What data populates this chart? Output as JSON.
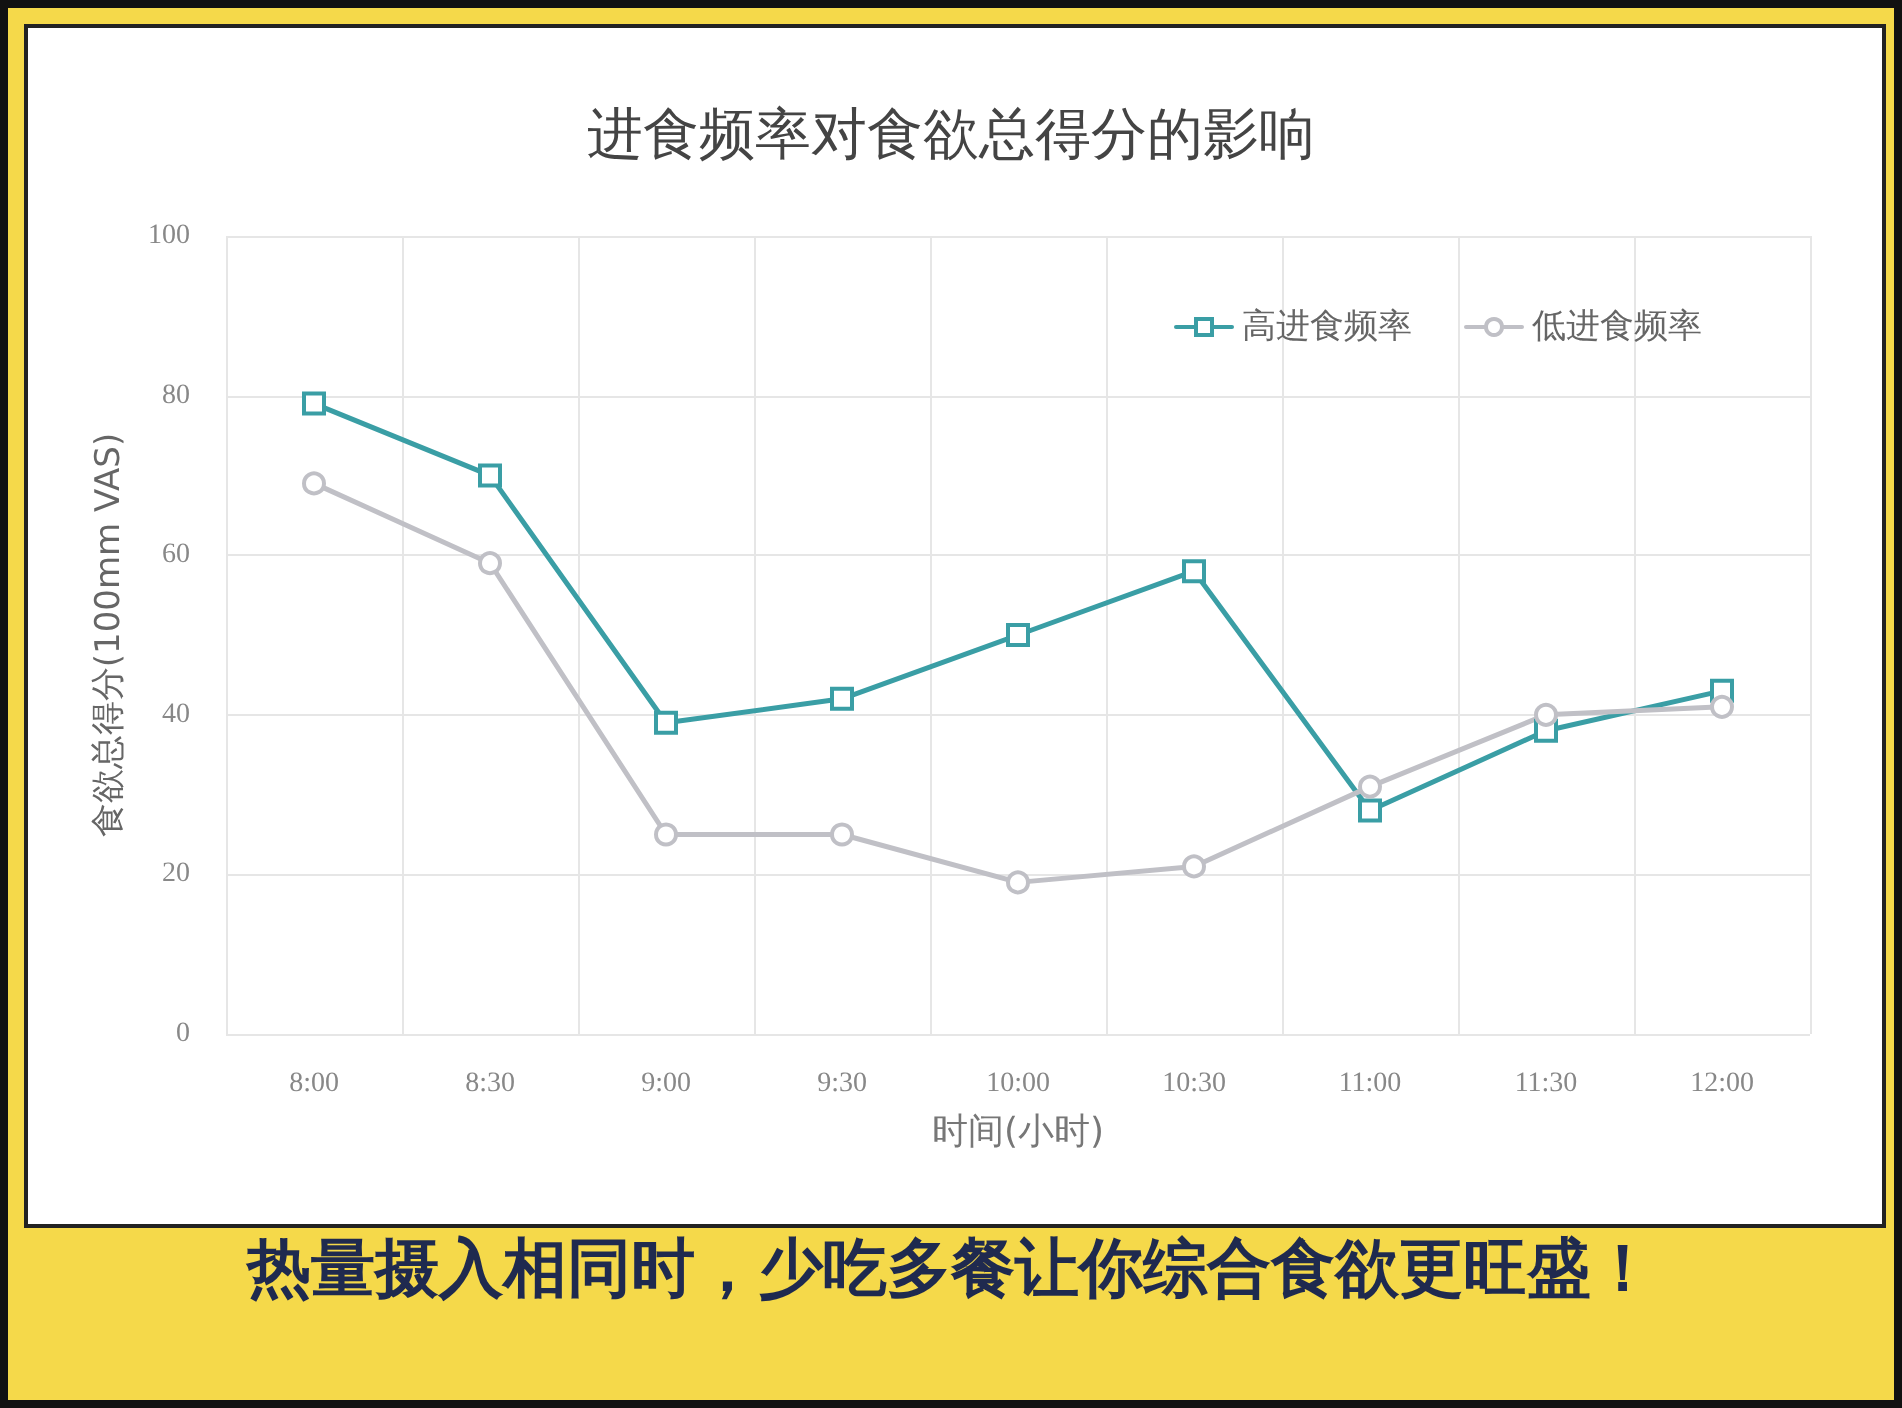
{
  "chart_data": {
    "type": "line",
    "title": "进食频率对食欲总得分的影响",
    "xlabel": "时间(小时)",
    "ylabel": "食欲总得分(100mm VAS)",
    "categories": [
      "8:00",
      "8:30",
      "9:00",
      "9:30",
      "10:00",
      "10:30",
      "11:00",
      "11:30",
      "12:00"
    ],
    "series": [
      {
        "name": "高进食频率",
        "color": "#3a9ea5",
        "marker": "square",
        "values": [
          79,
          70,
          39,
          42,
          50,
          58,
          28,
          38,
          43
        ]
      },
      {
        "name": "低进食频率",
        "color": "#c0c0c6",
        "marker": "circle",
        "values": [
          69,
          59,
          25,
          25,
          19,
          21,
          31,
          40,
          41
        ]
      }
    ],
    "ylim": [
      0,
      100
    ],
    "yticks": [
      0,
      20,
      40,
      60,
      80,
      100
    ],
    "grid": true,
    "legend": "top right",
    "line_style": "solid",
    "annotations": [
      "热量摄入相同时，少吃多餐让你综合食欲更旺盛！"
    ]
  }
}
